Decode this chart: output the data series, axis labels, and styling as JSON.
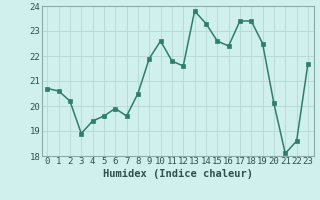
{
  "x": [
    0,
    1,
    2,
    3,
    4,
    5,
    6,
    7,
    8,
    9,
    10,
    11,
    12,
    13,
    14,
    15,
    16,
    17,
    18,
    19,
    20,
    21,
    22,
    23
  ],
  "y": [
    20.7,
    20.6,
    20.2,
    18.9,
    19.4,
    19.6,
    19.9,
    19.6,
    20.5,
    21.9,
    22.6,
    21.8,
    21.6,
    23.8,
    23.3,
    22.6,
    22.4,
    23.4,
    23.4,
    22.5,
    20.1,
    18.1,
    18.6,
    21.7
  ],
  "line_color": "#2e7d6e",
  "marker": "s",
  "marker_size": 2.2,
  "bg_color": "#cff0ec",
  "grid_color": "#b8d8d4",
  "xlabel": "Humidex (Indice chaleur)",
  "ylim": [
    18,
    24
  ],
  "yticks": [
    18,
    19,
    20,
    21,
    22,
    23,
    24
  ],
  "xticks": [
    0,
    1,
    2,
    3,
    4,
    5,
    6,
    7,
    8,
    9,
    10,
    11,
    12,
    13,
    14,
    15,
    16,
    17,
    18,
    19,
    20,
    21,
    22,
    23
  ],
  "xlabel_fontsize": 7.5,
  "tick_fontsize": 6.5,
  "tick_color": "#2e5050",
  "spine_color": "#8aabaa",
  "line_width": 1.1
}
